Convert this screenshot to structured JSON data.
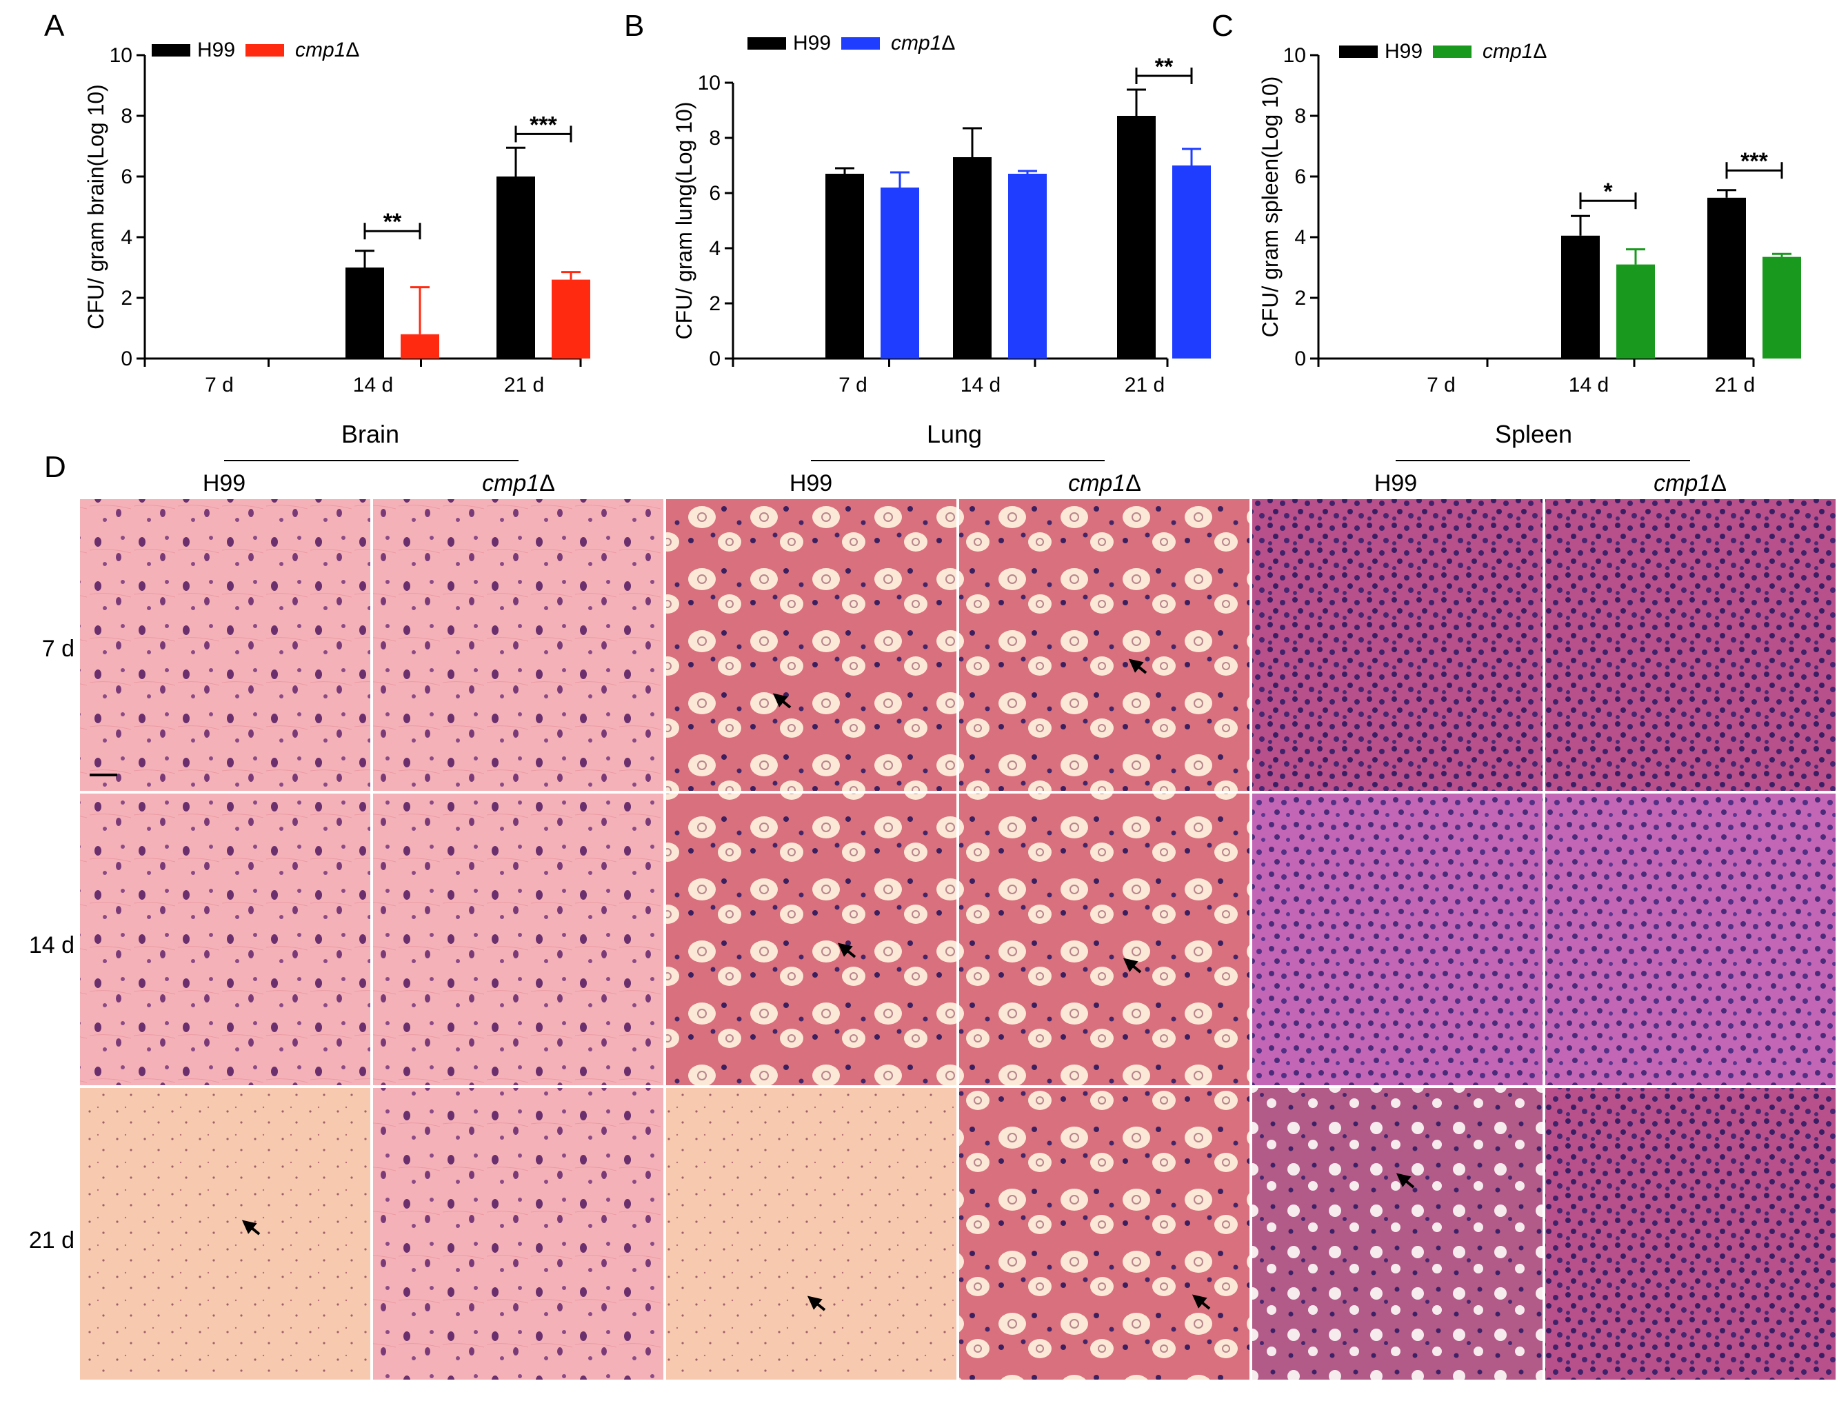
{
  "colors": {
    "h99": "#000000",
    "brain": "#ff2a10",
    "lung": "#1f3dff",
    "spleen": "#199a1f"
  },
  "legend": {
    "wt": "H99",
    "mut": "cmp1Δ"
  },
  "chart_data": [
    {
      "type": "bar",
      "panel": "A",
      "organ": "brain",
      "ylabel": "CFU/ gram brain(Log 10)",
      "ylim": [
        0,
        10
      ],
      "yticks": [
        "0",
        "2",
        "4",
        "6",
        "8",
        "10"
      ],
      "categories": [
        "7 d",
        "14 d",
        "21 d"
      ],
      "series": [
        {
          "name": "H99",
          "values": [
            null,
            3.0,
            6.0
          ],
          "errors": [
            null,
            0.55,
            0.95
          ]
        },
        {
          "name": "cmp1Δ",
          "values": [
            null,
            0.8,
            2.6
          ],
          "errors": [
            null,
            1.55,
            0.25
          ]
        }
      ],
      "significance": [
        {
          "category": "14 d",
          "label": "**",
          "y": 4.2
        },
        {
          "category": "21 d",
          "label": "***",
          "y": 7.4
        }
      ]
    },
    {
      "type": "bar",
      "panel": "B",
      "organ": "lung",
      "ylabel": "CFU/ gram lung(Log 10)",
      "ylim": [
        0,
        11
      ],
      "yticks": [
        "0",
        "2",
        "4",
        "6",
        "8",
        "10"
      ],
      "categories": [
        "7 d",
        "14 d",
        "21 d"
      ],
      "series": [
        {
          "name": "H99",
          "values": [
            6.7,
            7.3,
            8.8
          ],
          "errors": [
            0.2,
            1.05,
            0.95
          ]
        },
        {
          "name": "cmp1Δ",
          "values": [
            6.2,
            6.7,
            7.0
          ],
          "errors": [
            0.55,
            0.1,
            0.6
          ]
        }
      ],
      "significance": [
        {
          "category": "21 d",
          "label": "**",
          "y": 10.25
        }
      ]
    },
    {
      "type": "bar",
      "panel": "C",
      "organ": "spleen",
      "ylabel": "CFU/ gram spleen(Log 10)",
      "ylim": [
        0,
        10
      ],
      "yticks": [
        "0",
        "2",
        "4",
        "6",
        "8",
        "10"
      ],
      "categories": [
        "7 d",
        "14 d",
        "21 d"
      ],
      "series": [
        {
          "name": "H99",
          "values": [
            null,
            4.05,
            5.3
          ],
          "errors": [
            null,
            0.65,
            0.25
          ]
        },
        {
          "name": "cmp1Δ",
          "values": [
            null,
            3.1,
            3.35
          ],
          "errors": [
            null,
            0.5,
            0.1
          ]
        }
      ],
      "significance": [
        {
          "category": "14 d",
          "label": "*",
          "y": 5.2
        },
        {
          "category": "21 d",
          "label": "***",
          "y": 6.2
        }
      ]
    }
  ],
  "histology": {
    "panel": "D",
    "organs": [
      "Brain",
      "Lung",
      "Spleen"
    ],
    "strains": [
      "H99",
      "cmp1Δ"
    ],
    "rows": [
      "7 d",
      "14 d",
      "21 d"
    ]
  }
}
